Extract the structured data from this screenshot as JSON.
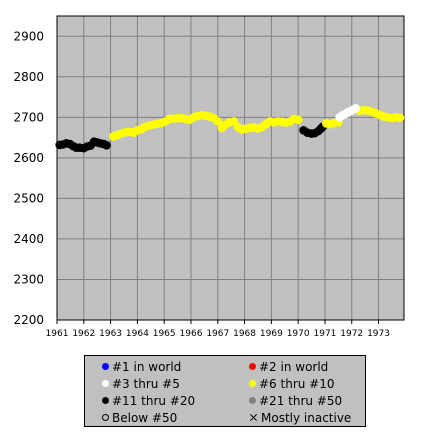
{
  "chart_data": {
    "type": "scatter",
    "title": "",
    "xlabel": "",
    "ylabel": "",
    "xlim": [
      1961,
      1973.95
    ],
    "ylim": [
      2200,
      2950
    ],
    "x_ticks": [
      "1961",
      "1962",
      "1963",
      "1964",
      "1965",
      "1966",
      "1967",
      "1968",
      "1969",
      "1970",
      "1971",
      "1972",
      "1973"
    ],
    "y_ticks": [
      "2200",
      "2300",
      "2400",
      "2500",
      "2600",
      "2700",
      "2800",
      "2900"
    ],
    "grid": true,
    "background": "#c0c0c0",
    "series": [
      {
        "name": "#11 thru #20",
        "color": "#000000",
        "points": [
          [
            1961.1,
            2632
          ],
          [
            1961.22,
            2633
          ],
          [
            1961.35,
            2636
          ],
          [
            1961.48,
            2634
          ],
          [
            1961.6,
            2629
          ],
          [
            1961.72,
            2625
          ],
          [
            1961.85,
            2625
          ],
          [
            1962.0,
            2624
          ],
          [
            1962.12,
            2628
          ],
          [
            1962.25,
            2630
          ],
          [
            1962.38,
            2640
          ],
          [
            1962.5,
            2638
          ],
          [
            1962.62,
            2636
          ],
          [
            1962.75,
            2634
          ],
          [
            1962.85,
            2631
          ],
          [
            1970.2,
            2668
          ],
          [
            1970.35,
            2662
          ],
          [
            1970.5,
            2660
          ],
          [
            1970.62,
            2661
          ],
          [
            1970.75,
            2666
          ],
          [
            1970.85,
            2672
          ],
          [
            1970.92,
            2677
          ]
        ]
      },
      {
        "name": "#6 thru #10",
        "color": "#ffff00",
        "points": [
          [
            1963.1,
            2653
          ],
          [
            1963.25,
            2656
          ],
          [
            1963.4,
            2660
          ],
          [
            1963.55,
            2663
          ],
          [
            1963.7,
            2664
          ],
          [
            1963.85,
            2662
          ],
          [
            1964.0,
            2668
          ],
          [
            1964.15,
            2671
          ],
          [
            1964.3,
            2677
          ],
          [
            1964.45,
            2680
          ],
          [
            1964.6,
            2682
          ],
          [
            1964.75,
            2684
          ],
          [
            1964.9,
            2686
          ],
          [
            1965.05,
            2690
          ],
          [
            1965.2,
            2696
          ],
          [
            1965.35,
            2697
          ],
          [
            1965.5,
            2698
          ],
          [
            1965.65,
            2698
          ],
          [
            1965.8,
            2696
          ],
          [
            1965.95,
            2694
          ],
          [
            1966.1,
            2700
          ],
          [
            1966.25,
            2703
          ],
          [
            1966.4,
            2705
          ],
          [
            1966.55,
            2704
          ],
          [
            1966.7,
            2702
          ],
          [
            1966.85,
            2698
          ],
          [
            1967.0,
            2690
          ],
          [
            1967.15,
            2674
          ],
          [
            1967.3,
            2682
          ],
          [
            1967.45,
            2688
          ],
          [
            1967.6,
            2690
          ],
          [
            1967.75,
            2676
          ],
          [
            1967.9,
            2670
          ],
          [
            1968.05,
            2672
          ],
          [
            1968.2,
            2674
          ],
          [
            1968.35,
            2675
          ],
          [
            1968.5,
            2673
          ],
          [
            1968.65,
            2676
          ],
          [
            1968.8,
            2683
          ],
          [
            1968.95,
            2690
          ],
          [
            1969.1,
            2688
          ],
          [
            1969.25,
            2690
          ],
          [
            1969.4,
            2689
          ],
          [
            1969.55,
            2687
          ],
          [
            1969.7,
            2690
          ],
          [
            1969.85,
            2696
          ],
          [
            1970.0,
            2694
          ],
          [
            1971.05,
            2685
          ],
          [
            1971.2,
            2683
          ],
          [
            1971.35,
            2686
          ],
          [
            1971.5,
            2688
          ],
          [
            1972.3,
            2716
          ],
          [
            1972.45,
            2718
          ],
          [
            1972.6,
            2717
          ],
          [
            1972.75,
            2714
          ],
          [
            1972.9,
            2710
          ],
          [
            1973.05,
            2706
          ],
          [
            1973.2,
            2702
          ],
          [
            1973.35,
            2700
          ],
          [
            1973.5,
            2698
          ],
          [
            1973.65,
            2700
          ],
          [
            1973.8,
            2699
          ]
        ]
      },
      {
        "name": "#3 thru #5",
        "color": "#ffffff",
        "points": [
          [
            1971.55,
            2700
          ],
          [
            1971.65,
            2705
          ],
          [
            1971.75,
            2708
          ],
          [
            1971.85,
            2712
          ],
          [
            1971.95,
            2715
          ],
          [
            1972.05,
            2719
          ],
          [
            1972.15,
            2722
          ]
        ]
      }
    ],
    "legend": {
      "position": "bottom",
      "entries": [
        {
          "label": "#1 in world",
          "color": "#0000ff",
          "marker": "dot"
        },
        {
          "label": "#2 in world",
          "color": "#ff0000",
          "marker": "dot"
        },
        {
          "label": "#3 thru #5",
          "color": "#ffffff",
          "marker": "dot"
        },
        {
          "label": "#6 thru #10",
          "color": "#ffff00",
          "marker": "dot"
        },
        {
          "label": "#11 thru #20",
          "color": "#000000",
          "marker": "dot"
        },
        {
          "label": "#21 thru #50",
          "color": "#808080",
          "marker": "dot"
        },
        {
          "label": "Below #50",
          "color": "none",
          "marker": "ring"
        },
        {
          "label": "Mostly inactive",
          "color": "#000000",
          "marker": "cross"
        }
      ]
    }
  }
}
